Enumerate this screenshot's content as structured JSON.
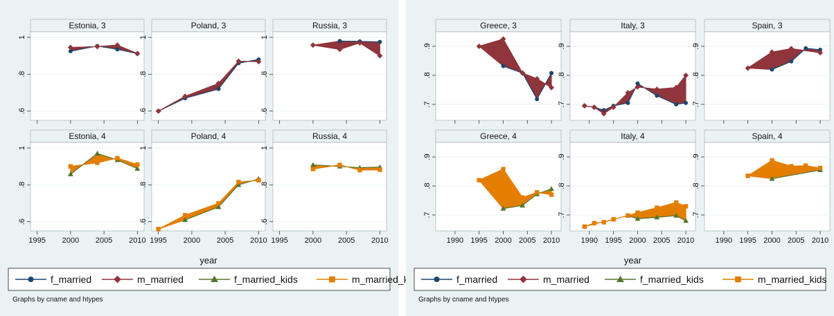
{
  "colors": {
    "f_married": "#1a476f",
    "m_married": "#90353b",
    "f_married_kids": "#55752f",
    "m_married_kids": "#e37e00",
    "title_band": "#eaf2f3",
    "outer_bg": "#eaf2f3",
    "plot_bg": "#ffffff",
    "grid": "#eaf2f3"
  },
  "icons": [
    "circle-marker-icon",
    "diamond-marker-icon",
    "triangle-marker-icon",
    "square-marker-icon"
  ],
  "chart_data": [
    {
      "type": "line",
      "xlabel": "year",
      "note": "Graphs by cname and htypes",
      "xlim": [
        1994,
        2011
      ],
      "xticks": [
        1995,
        2000,
        2005,
        2010
      ],
      "ylim": [
        0.55,
        1.03
      ],
      "yticks": [
        0.6,
        0.8,
        1
      ],
      "ytick_labels": [
        ".6",
        ".8",
        "1"
      ],
      "legend": [
        "f_married",
        "m_married",
        "f_married_kids",
        "m_married_kids"
      ],
      "panels": [
        {
          "title": "Estonia, 3",
          "series": [
            {
              "name": "f_married",
              "x": [
                2000,
                2004,
                2007,
                2010
              ],
              "y": [
                0.925,
                0.953,
                0.935,
                0.912
              ]
            },
            {
              "name": "m_married",
              "x": [
                2000,
                2004,
                2007,
                2010
              ],
              "y": [
                0.945,
                0.95,
                0.958,
                0.912
              ]
            }
          ]
        },
        {
          "title": "Poland, 3",
          "series": [
            {
              "name": "f_married",
              "x": [
                1995,
                1999,
                2004,
                2007,
                2010
              ],
              "y": [
                0.6,
                0.67,
                0.72,
                0.86,
                0.88
              ]
            },
            {
              "name": "m_married",
              "x": [
                1995,
                1999,
                2004,
                2007,
                2010
              ],
              "y": [
                0.6,
                0.68,
                0.75,
                0.87,
                0.868
              ]
            }
          ]
        },
        {
          "title": "Russia, 3",
          "series": [
            {
              "name": "f_married",
              "x": [
                2004,
                2007,
                2010
              ],
              "y": [
                0.98,
                0.978,
                0.975
              ]
            },
            {
              "name": "m_married",
              "x": [
                2000,
                2004,
                2007,
                2010
              ],
              "y": [
                0.958,
                0.935,
                0.97,
                0.9
              ]
            }
          ]
        },
        {
          "title": "Estonia, 4",
          "series": [
            {
              "name": "f_married_kids",
              "x": [
                2000,
                2004,
                2007,
                2010
              ],
              "y": [
                0.858,
                0.97,
                0.935,
                0.888
              ]
            },
            {
              "name": "m_married_kids",
              "x": [
                2000,
                2004,
                2007,
                2010
              ],
              "y": [
                0.9,
                0.92,
                0.945,
                0.91
              ]
            }
          ]
        },
        {
          "title": "Poland, 4",
          "series": [
            {
              "name": "f_married_kids",
              "x": [
                1999,
                2004,
                2007,
                2010
              ],
              "y": [
                0.61,
                0.68,
                0.8,
                0.832
              ]
            },
            {
              "name": "m_married_kids",
              "x": [
                1995,
                1999,
                2004,
                2007,
                2010
              ],
              "y": [
                0.56,
                0.635,
                0.7,
                0.815,
                0.825
              ]
            }
          ]
        },
        {
          "title": "Russia, 4",
          "series": [
            {
              "name": "f_married_kids",
              "x": [
                2000,
                2004,
                2007,
                2010
              ],
              "y": [
                0.908,
                0.9,
                0.893,
                0.896
              ]
            },
            {
              "name": "m_married_kids",
              "x": [
                2000,
                2004,
                2007,
                2010
              ],
              "y": [
                0.886,
                0.908,
                0.88,
                0.882
              ]
            }
          ]
        }
      ]
    },
    {
      "type": "line",
      "xlabel": "year",
      "note": "Graphs by cname and htypes",
      "xlim": [
        1986,
        2012
      ],
      "xticks": [
        1990,
        1995,
        2000,
        2005,
        2010
      ],
      "ylim": [
        0.645,
        0.95
      ],
      "yticks": [
        0.7,
        0.8,
        0.9
      ],
      "ytick_labels": [
        ".7",
        ".8",
        ".9"
      ],
      "legend": [
        "f_married",
        "m_married",
        "f_married_kids",
        "m_married_kids"
      ],
      "panels": [
        {
          "title": "Greece, 3",
          "series": [
            {
              "name": "f_married",
              "x": [
                2000,
                2004,
                2007,
                2010
              ],
              "y": [
                0.832,
                0.808,
                0.718,
                0.808
              ]
            },
            {
              "name": "m_married",
              "x": [
                1995,
                2000,
                2004,
                2007,
                2010
              ],
              "y": [
                0.9,
                0.925,
                0.808,
                0.788,
                0.758
              ]
            }
          ]
        },
        {
          "title": "Italy, 3",
          "series": [
            {
              "name": "f_married",
              "x": [
                1989,
                1991,
                1993,
                1995,
                1998,
                2000,
                2004,
                2008,
                2010
              ],
              "y": [
                0.695,
                0.69,
                0.68,
                0.695,
                0.705,
                0.772,
                0.73,
                0.7,
                0.705
              ]
            },
            {
              "name": "m_married",
              "x": [
                1989,
                1991,
                1993,
                1995,
                1998,
                2000,
                2004,
                2008,
                2010
              ],
              "y": [
                0.695,
                0.69,
                0.668,
                0.69,
                0.74,
                0.76,
                0.752,
                0.758,
                0.8
              ]
            }
          ]
        },
        {
          "title": "Spain, 3",
          "series": [
            {
              "name": "f_married",
              "x": [
                2000,
                2004,
                2007,
                2010
              ],
              "y": [
                0.82,
                0.848,
                0.893,
                0.888
              ]
            },
            {
              "name": "m_married",
              "x": [
                1995,
                2000,
                2004,
                2010
              ],
              "y": [
                0.825,
                0.88,
                0.892,
                0.878
              ]
            }
          ]
        },
        {
          "title": "Greece, 4",
          "series": [
            {
              "name": "f_married_kids",
              "x": [
                2000,
                2004,
                2007,
                2010
              ],
              "y": [
                0.722,
                0.733,
                0.772,
                0.79
              ]
            },
            {
              "name": "m_married_kids",
              "x": [
                1995,
                2000,
                2004,
                2007,
                2010
              ],
              "y": [
                0.82,
                0.858,
                0.76,
                0.778,
                0.77
              ]
            }
          ]
        },
        {
          "title": "Italy, 4",
          "series": [
            {
              "name": "f_married_kids",
              "x": [
                1998,
                2000,
                2004,
                2008,
                2010
              ],
              "y": [
                0.698,
                0.687,
                0.692,
                0.698,
                0.68
              ]
            },
            {
              "name": "m_married_kids",
              "x": [
                1989,
                1991,
                1993,
                1995,
                1998,
                2000,
                2004,
                2008,
                2010
              ],
              "y": [
                0.66,
                0.672,
                0.675,
                0.685,
                0.698,
                0.708,
                0.725,
                0.743,
                0.73
              ]
            }
          ]
        },
        {
          "title": "Spain, 4",
          "series": [
            {
              "name": "f_married_kids",
              "x": [
                2000,
                2010
              ],
              "y": [
                0.825,
                0.855
              ]
            },
            {
              "name": "m_married_kids",
              "x": [
                1995,
                2000,
                2004,
                2007,
                2010
              ],
              "y": [
                0.835,
                0.888,
                0.868,
                0.87,
                0.862
              ]
            }
          ]
        }
      ]
    }
  ]
}
